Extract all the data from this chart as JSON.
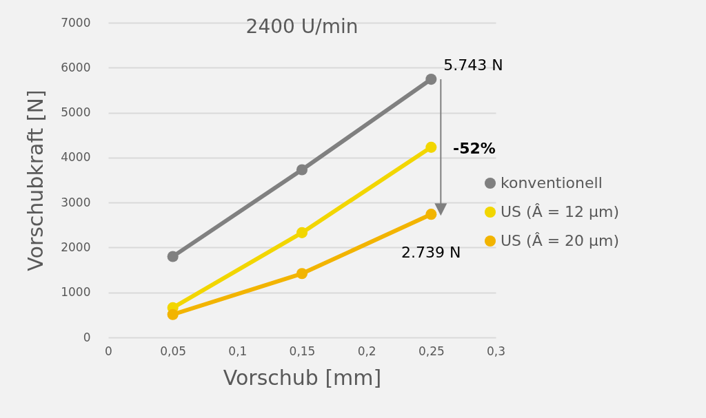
{
  "chart_data": {
    "type": "line",
    "title": "2400 U/min",
    "xlabel": "Vorschub [mm]",
    "ylabel": "Vorschubkraft [N]",
    "x": [
      0.05,
      0.15,
      0.25
    ],
    "series": [
      {
        "name": "konventionell",
        "color": "#808080",
        "values": [
          1800,
          3730,
          5743
        ]
      },
      {
        "name": "US (Â = 12 µm)",
        "color": "#f2d600",
        "values": [
          660,
          2330,
          4230
        ]
      },
      {
        "name": "US (Â = 20 µm)",
        "color": "#f2b400",
        "values": [
          510,
          1420,
          2739
        ]
      }
    ],
    "xlim": [
      0,
      0.3
    ],
    "xticks": [
      0,
      {
        "value": 0.05,
        "label": "0,05"
      },
      {
        "value": 0.1,
        "label": "0,1"
      },
      {
        "value": 0.15,
        "label": "0,15"
      },
      {
        "value": 0.2,
        "label": "0,2"
      },
      {
        "value": 0.25,
        "label": "0,25"
      },
      {
        "value": 0.3,
        "label": "0,3"
      }
    ],
    "ylim": [
      0,
      7000
    ],
    "yticks": [
      0,
      1000,
      2000,
      3000,
      4000,
      5000,
      6000,
      7000
    ],
    "grid": "y",
    "legend": "right",
    "marker": "circle",
    "line_style": "solid",
    "annotations": [
      {
        "text": "5.743 N",
        "x": 0.25,
        "y": 5743
      },
      {
        "text": "2.739 N",
        "x": 0.25,
        "y": 2739
      },
      "-52%"
    ]
  }
}
